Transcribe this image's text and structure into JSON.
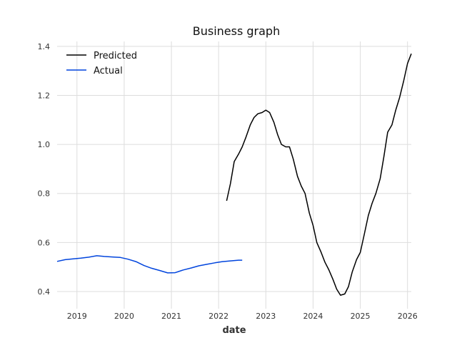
{
  "chart_data": {
    "type": "line",
    "title": "Business graph",
    "xlabel": "date",
    "ylabel": "",
    "xlim": [
      2018.58,
      2026.08
    ],
    "ylim": [
      0.33,
      1.42
    ],
    "x_ticks": [
      2019,
      2020,
      2021,
      2022,
      2023,
      2024,
      2025,
      2026
    ],
    "x_tick_labels": [
      "2019",
      "2020",
      "2021",
      "2022",
      "2023",
      "2024",
      "2025",
      "2026"
    ],
    "y_ticks": [
      0.4,
      0.6,
      0.8,
      1.0,
      1.2,
      1.4
    ],
    "y_tick_labels": [
      "0.4",
      "0.6",
      "0.8",
      "1.0",
      "1.2",
      "1.4"
    ],
    "grid": true,
    "legend": "top-left",
    "series": [
      {
        "name": "Predicted",
        "color": "#000000",
        "points": [
          [
            2022.17,
            0.77
          ],
          [
            2022.25,
            0.84
          ],
          [
            2022.33,
            0.93
          ],
          [
            2022.42,
            0.96
          ],
          [
            2022.5,
            0.99
          ],
          [
            2022.58,
            1.03
          ],
          [
            2022.67,
            1.08
          ],
          [
            2022.75,
            1.11
          ],
          [
            2022.83,
            1.125
          ],
          [
            2022.92,
            1.13
          ],
          [
            2023.0,
            1.14
          ],
          [
            2023.08,
            1.13
          ],
          [
            2023.17,
            1.09
          ],
          [
            2023.25,
            1.04
          ],
          [
            2023.33,
            1.0
          ],
          [
            2023.42,
            0.99
          ],
          [
            2023.5,
            0.99
          ],
          [
            2023.58,
            0.94
          ],
          [
            2023.67,
            0.87
          ],
          [
            2023.75,
            0.83
          ],
          [
            2023.83,
            0.8
          ],
          [
            2023.92,
            0.72
          ],
          [
            2024.0,
            0.67
          ],
          [
            2024.08,
            0.6
          ],
          [
            2024.17,
            0.56
          ],
          [
            2024.25,
            0.52
          ],
          [
            2024.33,
            0.49
          ],
          [
            2024.42,
            0.45
          ],
          [
            2024.5,
            0.41
          ],
          [
            2024.58,
            0.385
          ],
          [
            2024.67,
            0.39
          ],
          [
            2024.75,
            0.42
          ],
          [
            2024.83,
            0.48
          ],
          [
            2024.92,
            0.53
          ],
          [
            2025.0,
            0.56
          ],
          [
            2025.08,
            0.63
          ],
          [
            2025.17,
            0.71
          ],
          [
            2025.25,
            0.76
          ],
          [
            2025.33,
            0.8
          ],
          [
            2025.42,
            0.86
          ],
          [
            2025.5,
            0.95
          ],
          [
            2025.58,
            1.05
          ],
          [
            2025.67,
            1.08
          ],
          [
            2025.75,
            1.14
          ],
          [
            2025.83,
            1.19
          ],
          [
            2025.92,
            1.26
          ],
          [
            2026.0,
            1.33
          ],
          [
            2026.08,
            1.37
          ]
        ]
      },
      {
        "name": "Actual",
        "color": "#0044dd",
        "points": [
          [
            2018.58,
            0.523
          ],
          [
            2018.75,
            0.53
          ],
          [
            2018.92,
            0.533
          ],
          [
            2019.08,
            0.536
          ],
          [
            2019.25,
            0.54
          ],
          [
            2019.42,
            0.546
          ],
          [
            2019.58,
            0.543
          ],
          [
            2019.75,
            0.541
          ],
          [
            2019.92,
            0.539
          ],
          [
            2020.08,
            0.532
          ],
          [
            2020.25,
            0.522
          ],
          [
            2020.42,
            0.506
          ],
          [
            2020.58,
            0.495
          ],
          [
            2020.75,
            0.486
          ],
          [
            2020.92,
            0.476
          ],
          [
            2021.08,
            0.477
          ],
          [
            2021.25,
            0.488
          ],
          [
            2021.42,
            0.496
          ],
          [
            2021.58,
            0.505
          ],
          [
            2021.75,
            0.511
          ],
          [
            2021.92,
            0.517
          ],
          [
            2022.08,
            0.522
          ],
          [
            2022.25,
            0.525
          ],
          [
            2022.42,
            0.528
          ],
          [
            2022.5,
            0.528
          ]
        ]
      }
    ]
  }
}
